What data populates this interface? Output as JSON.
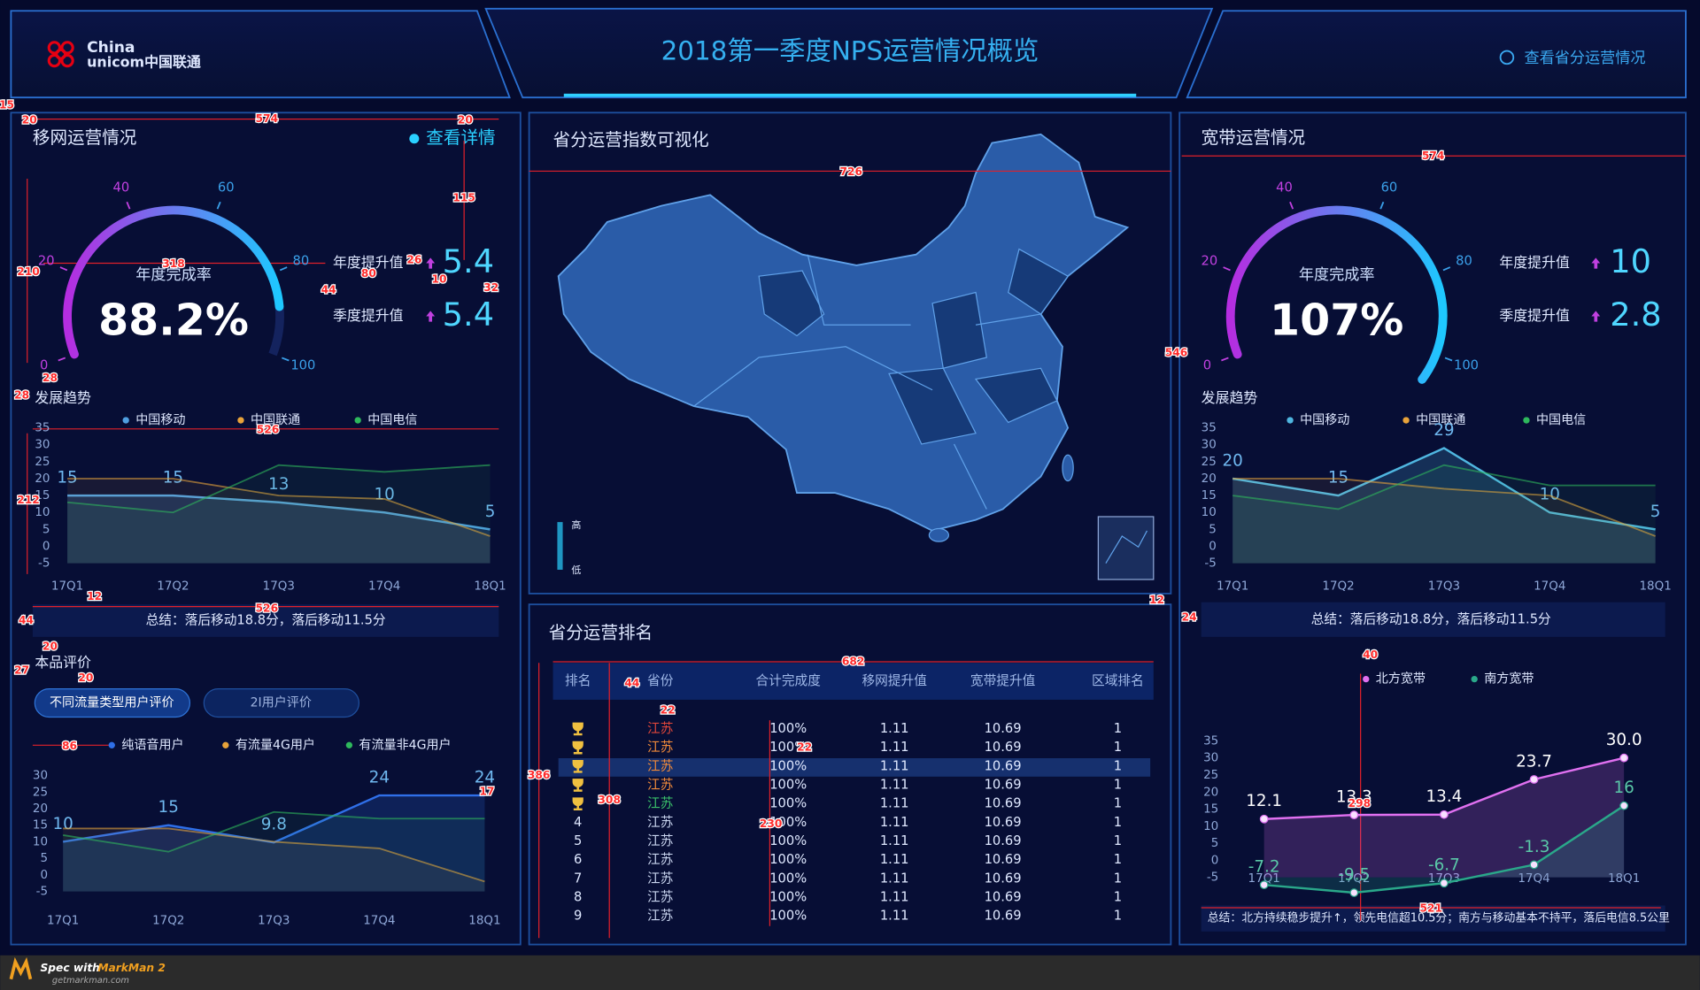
{
  "header": {
    "logo": [
      "China",
      "unicom中国联通"
    ],
    "title": "2018第一季度NPS运营情况概览",
    "link": "查看省分运营情况"
  },
  "mobile": {
    "title": "移网运营情况",
    "link": "查看详情",
    "stats": [
      {
        "label": "年度提升值",
        "value": 5.4
      },
      {
        "label": "季度提升值",
        "value": 5.4
      }
    ],
    "summary": "总结：落后移动18.8分，落后移动11.5分",
    "tabs": [
      "不同流量类型用户评价",
      "2I用户评价"
    ]
  },
  "map": {
    "title": "省分运营指数可视化",
    "legend_high": "高",
    "legend_low": "低"
  },
  "ranking": {
    "title": "省分运营排名",
    "columns": [
      "排名",
      "省份",
      "合计完成度",
      "移网提升值",
      "宽带提升值",
      "区域排名"
    ],
    "rows": [
      [
        null,
        "江苏",
        "100%",
        1.11,
        10.69,
        1
      ],
      [
        null,
        "江苏",
        "100%",
        1.11,
        10.69,
        1
      ],
      [
        null,
        "江苏",
        "100%",
        1.11,
        10.69,
        1
      ],
      [
        null,
        "江苏",
        "100%",
        1.11,
        10.69,
        1
      ],
      [
        null,
        "江苏",
        "100%",
        1.11,
        10.69,
        1
      ],
      [
        4,
        "江苏",
        "100%",
        1.11,
        10.69,
        1
      ],
      [
        5,
        "江苏",
        "100%",
        1.11,
        10.69,
        1
      ],
      [
        6,
        "江苏",
        "100%",
        1.11,
        10.69,
        1
      ],
      [
        7,
        "江苏",
        "100%",
        1.11,
        10.69,
        1
      ],
      [
        8,
        "江苏",
        "100%",
        1.11,
        10.69,
        1
      ],
      [
        9,
        "江苏",
        "100%",
        1.11,
        10.69,
        1
      ]
    ]
  },
  "broadband": {
    "title": "宽带运营情况",
    "stats": [
      {
        "label": "年度提升值",
        "value": 10
      },
      {
        "label": "季度提升值",
        "value": 2.8
      }
    ],
    "summary": "总结：落后移动18.8分，落后移动11.5分",
    "summary2": "总结：北方持续稳步提升↑，领先电信超10.5分；南方与移动基本不持平，落后电信8.5公里"
  },
  "chart_data": [
    {
      "type": "gauge",
      "label": "年度完成率",
      "value": 88.2,
      "value_label": "88.2%",
      "lim": [
        0,
        100
      ],
      "ticks": [
        0,
        20,
        40,
        60,
        80,
        100
      ]
    },
    {
      "type": "line",
      "title": "发展趋势",
      "categories": [
        "17Q1",
        "17Q2",
        "17Q3",
        "17Q4",
        "18Q1"
      ],
      "series": [
        {
          "name": "中国移动",
          "color": "#4f9fe0",
          "labels": true,
          "values": [
            15,
            15,
            13,
            10,
            5
          ]
        },
        {
          "name": "中国联通",
          "color": "#e8a33a",
          "values": [
            20,
            20,
            15,
            14,
            3
          ]
        },
        {
          "name": "中国电信",
          "color": "#2eb85c",
          "values": [
            13,
            10,
            24,
            22,
            24
          ]
        }
      ],
      "ylim": [
        -5,
        35
      ],
      "yticks": [
        -5,
        0,
        5,
        10,
        15,
        20,
        25,
        30,
        35
      ]
    },
    {
      "type": "line",
      "title": "本品评价",
      "categories": [
        "17Q1",
        "17Q2",
        "17Q3",
        "17Q4",
        "18Q1"
      ],
      "series": [
        {
          "name": "纯语音用户",
          "color": "#2f6fe8",
          "labels": true,
          "values": [
            10,
            15,
            9.8,
            24,
            24
          ]
        },
        {
          "name": "有流量4G用户",
          "color": "#e8a33a",
          "values": [
            14,
            14,
            10,
            8,
            -2
          ]
        },
        {
          "name": "有流量非4G用户",
          "color": "#2eb85c",
          "values": [
            12,
            7,
            19,
            17,
            17
          ]
        }
      ],
      "ylim": [
        -5,
        30
      ],
      "yticks": [
        -5,
        0,
        5,
        10,
        15,
        20,
        25,
        30
      ]
    },
    {
      "type": "gauge",
      "label": "年度完成率",
      "value": 107,
      "value_label": "107%",
      "lim": [
        0,
        100
      ],
      "ticks": [
        0,
        20,
        40,
        60,
        80,
        100
      ]
    },
    {
      "type": "line",
      "title": "发展趋势",
      "categories": [
        "17Q1",
        "17Q2",
        "17Q3",
        "17Q4",
        "18Q1"
      ],
      "series": [
        {
          "name": "中国移动",
          "color": "#4fb6e0",
          "labels": true,
          "values": [
            20,
            15,
            29,
            10,
            5
          ]
        },
        {
          "name": "中国联通",
          "color": "#e8a33a",
          "values": [
            20,
            20,
            17,
            15,
            3
          ]
        },
        {
          "name": "中国电信",
          "color": "#2eb85c",
          "values": [
            15,
            11,
            24,
            18,
            18
          ]
        }
      ],
      "ylim": [
        -5,
        35
      ],
      "yticks": [
        -5,
        0,
        5,
        10,
        15,
        20,
        25,
        30,
        35
      ]
    },
    {
      "type": "line",
      "categories": [
        "17Q1",
        "17Q2",
        "17Q3",
        "17Q4",
        "18Q1"
      ],
      "points": true,
      "series": [
        {
          "name": "北方宽带",
          "color": "#e070f0",
          "labels": true,
          "values": [
            12.1,
            13.3,
            13.4,
            23.7,
            30
          ],
          "value_labels": [
            "12.1",
            "13.3",
            "13.4",
            "23.7",
            "30.0"
          ]
        },
        {
          "name": "南方宽带",
          "color": "#2aa88a",
          "labels": true,
          "values": [
            -7.2,
            -9.5,
            -6.7,
            -1.3,
            16
          ]
        }
      ],
      "ylim": [
        -5,
        35
      ],
      "yticks": [
        -5,
        0,
        5,
        10,
        15,
        20,
        25,
        30,
        35
      ]
    }
  ],
  "annotations": [
    15,
    20,
    574,
    20,
    115,
    210,
    318,
    26,
    80,
    10,
    44,
    32,
    28,
    28,
    526,
    212,
    12,
    526,
    44,
    20,
    27,
    20,
    86,
    17,
    726,
    546,
    12,
    24,
    682,
    44,
    22,
    22,
    386,
    308,
    230,
    574,
    40,
    298,
    521
  ],
  "footer": {
    "spec": "Spec with",
    "product": "MarkMan 2",
    "url": "getmarkman.com"
  }
}
